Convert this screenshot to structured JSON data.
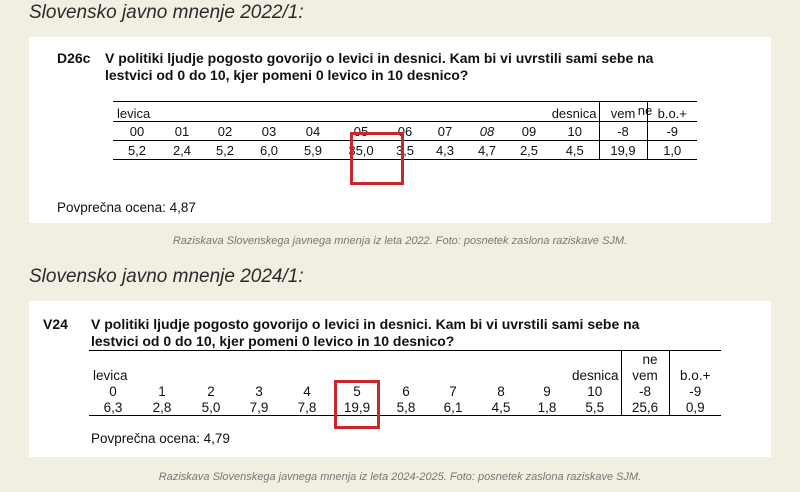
{
  "sections": [
    {
      "heading": "Slovensko javno mnenje 2022/1:",
      "code": "D26c",
      "question_line1": "V politiki ljudje pogosto govorijo o levici in desnici. Kam bi vi uvrstili sami sebe na",
      "question_line2": "lestvici od 0 do 10, kjer pomeni 0 levico in 10 desnico?",
      "label_left": "levica",
      "label_right": "desnica",
      "ne_top": "ne",
      "ne_bottom": "vem",
      "bo": "b.o.+",
      "scale": [
        "00",
        "01",
        "02",
        "03",
        "04",
        "05",
        "06",
        "07",
        "08",
        "09",
        "10",
        "-8",
        "-9"
      ],
      "values": [
        "5,2",
        "2,4",
        "5,2",
        "6,0",
        "5,9",
        "35,0",
        "3,5",
        "4,3",
        "4,7",
        "2,5",
        "4,5",
        "19,9",
        "1,0"
      ],
      "average": "Povprečna ocena: 4,87",
      "highlighted_index": 5,
      "caption": "Raziskava Slovenskega javnega mnenja iz leta 2022. Foto: posnetek zaslona raziskave SJM."
    },
    {
      "heading": "Slovensko javno mnenje 2024/1:",
      "code": "V24",
      "question_line1": "V politiki ljudje pogosto govorijo o levici in desnici. Kam bi vi uvrstili sami sebe na",
      "question_line2": "lestvici od 0 do 10, kjer pomeni 0 levico in 10 desnico?",
      "label_left": "levica",
      "label_right": "desnica",
      "ne_top": "ne",
      "ne_bottom": "vem",
      "bo": "b.o.+",
      "scale": [
        "0",
        "1",
        "2",
        "3",
        "4",
        "5",
        "6",
        "7",
        "8",
        "9",
        "10",
        "-8",
        "-9"
      ],
      "values": [
        "6,3",
        "2,8",
        "5,0",
        "7,9",
        "7,8",
        "19,9",
        "5,8",
        "6,1",
        "4,5",
        "1,8",
        "5,5",
        "25,6",
        "0,9"
      ],
      "average": "Povprečna ocena: 4,79",
      "highlighted_index": 5,
      "caption": "Raziskava Slovenskega javnega mnenja iz leta 2024-2025. Foto: posnetek zaslona raziskave SJM."
    }
  ],
  "colors": {
    "highlight": "#c8282c",
    "background": "#f1eee2",
    "panel": "#ffffff"
  }
}
